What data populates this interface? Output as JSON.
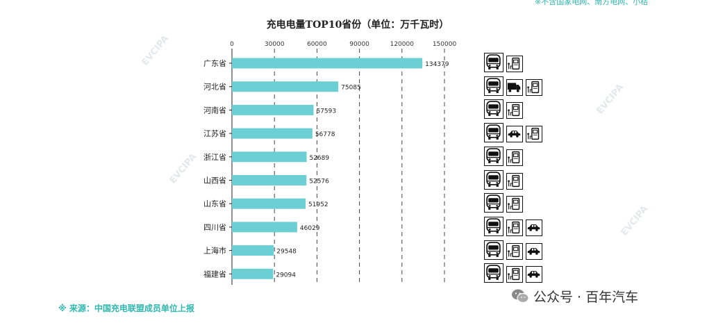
{
  "top_note": "※不含国家电网、南方电网、小桔",
  "source_note": "※ 来源：中国充电联盟成员单位上报",
  "brand": {
    "name": "公众号 · 百年汽车",
    "icon": "wechat-icon"
  },
  "watermark": "EVCIPA",
  "chart_data": {
    "type": "bar",
    "orientation": "horizontal",
    "title": "充电电量TOP10省份（单位：万千瓦时）",
    "categories": [
      "广东省",
      "河北省",
      "河南省",
      "江苏省",
      "浙江省",
      "山西省",
      "山东省",
      "四川省",
      "上海市",
      "福建省"
    ],
    "values": [
      134379,
      75085,
      57593,
      56778,
      52689,
      52576,
      51952,
      46029,
      29548,
      29094
    ],
    "xlim": [
      0,
      150000
    ],
    "xticks": [
      0,
      30000,
      60000,
      90000,
      120000,
      150000
    ],
    "xtick_labels": [
      "0",
      "30000",
      "60000",
      "90000",
      "120000",
      "150000"
    ],
    "bar_color": "#6ccfd3",
    "grid": "dashed-vertical",
    "xaxis_position": "top"
  },
  "type_icons": [
    [
      "bus-icon",
      "charger-icon"
    ],
    [
      "bus-icon",
      "truck-icon",
      "charger-icon"
    ],
    [
      "bus-icon",
      "charger-icon"
    ],
    [
      "bus-icon",
      "car-icon",
      "charger-icon"
    ],
    [
      "bus-icon",
      "charger-icon"
    ],
    [
      "bus-icon",
      "charger-icon"
    ],
    [
      "bus-icon",
      "charger-icon"
    ],
    [
      "bus-icon",
      "charger-icon",
      "car-icon"
    ],
    [
      "bus-icon",
      "charger-icon",
      "car-icon"
    ],
    [
      "bus-icon",
      "charger-icon",
      "car-icon"
    ]
  ]
}
